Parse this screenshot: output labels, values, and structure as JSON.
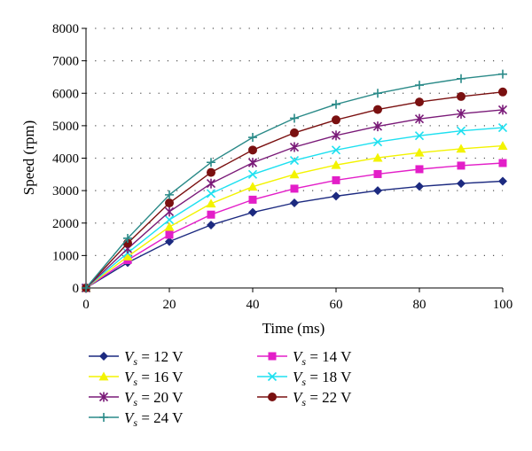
{
  "chart_data": {
    "type": "line",
    "xlabel": "Time (ms)",
    "ylabel": "Speed (rpm)",
    "xlim": [
      0,
      100
    ],
    "ylim": [
      0,
      8000
    ],
    "x_ticks": [
      0,
      20,
      40,
      60,
      80,
      100
    ],
    "y_ticks": [
      0,
      1000,
      2000,
      3000,
      4000,
      5000,
      6000,
      7000,
      8000
    ],
    "grid": "dotted horizontal",
    "legend_placement": "bottom (below plot), two columns",
    "x": [
      0,
      10,
      20,
      30,
      40,
      50,
      60,
      70,
      80,
      90,
      100
    ],
    "series": [
      {
        "name": "V_s = 12 V",
        "label_sub": "s",
        "label_value": "= 12 V",
        "color": "#1c2a80",
        "marker": "diamond",
        "values": [
          0,
          780,
          1430,
          1940,
          2330,
          2620,
          2830,
          3000,
          3130,
          3220,
          3290
        ]
      },
      {
        "name": "V_s = 14 V",
        "label_sub": "s",
        "label_value": "= 14 V",
        "color": "#e31ec8",
        "marker": "square",
        "values": [
          0,
          860,
          1640,
          2260,
          2720,
          3060,
          3320,
          3510,
          3660,
          3770,
          3850
        ]
      },
      {
        "name": "V_s = 16 V",
        "label_sub": "s",
        "label_value": "= 16 V",
        "color": "#f3f300",
        "marker": "triangle",
        "values": [
          0,
          970,
          1880,
          2600,
          3120,
          3500,
          3790,
          4010,
          4170,
          4290,
          4380
        ]
      },
      {
        "name": "V_s = 18 V",
        "label_sub": "s",
        "label_value": "= 18 V",
        "color": "#1ee0f0",
        "marker": "x",
        "values": [
          0,
          1080,
          2100,
          2910,
          3500,
          3930,
          4250,
          4500,
          4690,
          4840,
          4940
        ]
      },
      {
        "name": "V_s = 20 V",
        "label_sub": "s",
        "label_value": "= 20 V",
        "color": "#7a1a78",
        "marker": "star",
        "values": [
          0,
          1210,
          2350,
          3220,
          3860,
          4340,
          4700,
          4980,
          5210,
          5370,
          5490
        ]
      },
      {
        "name": "V_s = 22 V",
        "label_sub": "s",
        "label_value": "= 22 V",
        "color": "#7a1010",
        "marker": "circle",
        "values": [
          0,
          1380,
          2620,
          3560,
          4250,
          4780,
          5180,
          5500,
          5730,
          5900,
          6040
        ]
      },
      {
        "name": "V_s = 24 V",
        "label_sub": "s",
        "label_value": "= 24 V",
        "color": "#2a8a88",
        "marker": "plus",
        "values": [
          0,
          1530,
          2870,
          3870,
          4640,
          5230,
          5660,
          6000,
          6250,
          6450,
          6590
        ]
      }
    ],
    "legend_order": [
      0,
      1,
      2,
      3,
      4,
      5,
      6
    ]
  }
}
